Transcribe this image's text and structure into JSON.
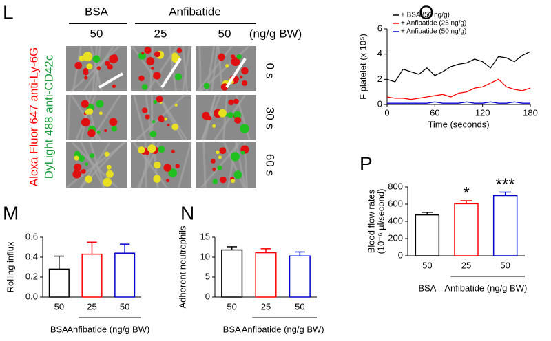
{
  "image_panel": {
    "panel": "L",
    "groups": [
      "BSA",
      "Anfibatide"
    ],
    "doses": [
      "50",
      "25",
      "50"
    ],
    "unit": "(ng/g BW)",
    "times": [
      "0 s",
      "30 s",
      "60 s"
    ],
    "stain_red": "Alexa Fluor 647 anti-Ly-6G",
    "stain_green": "DyLight 488 anti-CD42c"
  },
  "chart_data": [
    {
      "type": "line",
      "panel": "O",
      "x": [
        0,
        10,
        20,
        30,
        40,
        50,
        60,
        70,
        80,
        90,
        100,
        110,
        120,
        130,
        140,
        150,
        160,
        170,
        180
      ],
      "xlim": [
        0,
        180
      ],
      "xticks": [
        0,
        60,
        120,
        180
      ],
      "ylim": [
        0,
        6
      ],
      "yticks": [
        0,
        2,
        4,
        6
      ],
      "xlabel": "Time (seconds)",
      "ylabel": "F platelet (x 10⁵)",
      "legend": "upper left",
      "series": [
        {
          "name": "+ BSA (50 ng/g)",
          "color": "#000000",
          "values": [
            2.0,
            1.8,
            2.8,
            2.6,
            2.4,
            2.9,
            2.3,
            2.6,
            3.0,
            3.2,
            3.3,
            3.6,
            3.4,
            2.9,
            3.8,
            3.7,
            3.4,
            3.9,
            4.2
          ]
        },
        {
          "name": "+ Anfibatide (25 ng/g)",
          "color": "#ff0000",
          "values": [
            0.6,
            0.5,
            0.5,
            0.4,
            0.5,
            0.6,
            0.7,
            0.8,
            0.6,
            0.9,
            1.0,
            1.3,
            1.4,
            1.7,
            2.0,
            1.4,
            1.2,
            1.1,
            1.3
          ]
        },
        {
          "name": "+ Anfibatide (50 ng/g)",
          "color": "#0000cc",
          "values": [
            0.1,
            0.1,
            0.1,
            0.1,
            0.1,
            0.1,
            0.2,
            0.1,
            0.1,
            0.1,
            0.2,
            0.1,
            0.1,
            0.2,
            0.1,
            0.1,
            0.2,
            0.1,
            0.1
          ]
        }
      ]
    },
    {
      "type": "bar",
      "panel": "M",
      "categories": [
        "50",
        "25",
        "50"
      ],
      "values": [
        0.28,
        0.43,
        0.44
      ],
      "errors": [
        0.13,
        0.12,
        0.09
      ],
      "colors": [
        "#000000",
        "#ff0000",
        "#0000cc"
      ],
      "ylim": [
        0,
        0.6
      ],
      "yticks": [
        {
          "value": 0,
          "label": "0.0"
        },
        0.2,
        0.4,
        0.6
      ],
      "ylabel": "Rolling influx",
      "groups": [
        "BSA",
        "Anfibatide (ng/g BW)"
      ]
    },
    {
      "type": "bar",
      "panel": "N",
      "categories": [
        "50",
        "25",
        "50"
      ],
      "values": [
        11.8,
        11.1,
        10.3
      ],
      "errors": [
        0.8,
        1.0,
        1.0
      ],
      "colors": [
        "#000000",
        "#ff0000",
        "#0000cc"
      ],
      "ylim": [
        0,
        15
      ],
      "yticks": [
        0,
        5,
        10,
        15
      ],
      "ylabel": "Adherent neutrophils",
      "groups": [
        "BSA",
        "Anfibatide (ng/g BW)"
      ]
    },
    {
      "type": "bar",
      "panel": "P",
      "categories": [
        "50",
        "25",
        "50"
      ],
      "values": [
        475,
        605,
        700
      ],
      "errors": [
        30,
        35,
        40
      ],
      "colors": [
        "#000000",
        "#ff0000",
        "#0000cc"
      ],
      "ylim": [
        0,
        800
      ],
      "yticks": [
        0,
        200,
        400,
        600,
        800
      ],
      "ylabel": [
        "Blood flow rates",
        "(10⁻⁶ µl/second)"
      ],
      "groups": [
        "BSA",
        "Anfibatide (ng/g BW)"
      ],
      "significance": [
        null,
        "*",
        "***"
      ]
    }
  ]
}
